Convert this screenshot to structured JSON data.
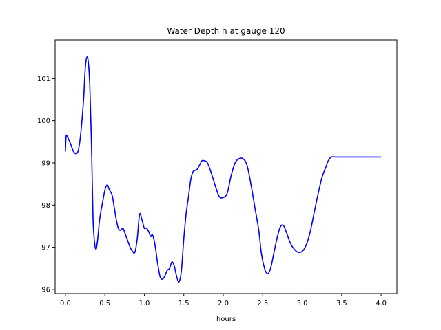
{
  "chart_data": {
    "type": "line",
    "title": "Water Depth h at gauge 120",
    "xlabel": "hours",
    "ylabel": "",
    "xlim": [
      -0.13,
      4.2
    ],
    "ylim": [
      95.9,
      101.92
    ],
    "x_ticks": [
      0.0,
      0.5,
      1.0,
      1.5,
      2.0,
      2.5,
      3.0,
      3.5,
      4.0
    ],
    "x_tick_labels": [
      "0.0",
      "0.5",
      "1.0",
      "1.5",
      "2.0",
      "2.5",
      "3.0",
      "3.5",
      "4.0"
    ],
    "y_ticks": [
      96,
      97,
      98,
      99,
      100,
      101
    ],
    "y_tick_labels": [
      "96",
      "97",
      "98",
      "99",
      "100",
      "101"
    ],
    "grid": false,
    "line_color": "#0000ff",
    "series": [
      {
        "x": [
          0.0,
          0.01,
          0.03,
          0.06,
          0.1,
          0.14,
          0.17,
          0.2,
          0.23,
          0.25,
          0.27,
          0.29,
          0.31,
          0.33,
          0.35,
          0.37,
          0.39,
          0.41,
          0.43,
          0.45,
          0.47,
          0.5,
          0.53,
          0.56,
          0.59,
          0.61,
          0.64,
          0.67,
          0.7,
          0.73,
          0.76,
          0.79,
          0.82,
          0.85,
          0.88,
          0.91,
          0.94,
          0.97,
          1.0,
          1.03,
          1.06,
          1.08,
          1.1,
          1.12,
          1.14,
          1.17,
          1.2,
          1.23,
          1.26,
          1.29,
          1.32,
          1.35,
          1.38,
          1.41,
          1.44,
          1.47,
          1.5,
          1.53,
          1.56,
          1.58,
          1.6,
          1.62,
          1.64,
          1.67,
          1.7,
          1.73,
          1.76,
          1.8,
          1.85,
          1.9,
          1.95,
          2.0,
          2.05,
          2.1,
          2.15,
          2.2,
          2.25,
          2.3,
          2.35,
          2.4,
          2.45,
          2.48,
          2.52,
          2.56,
          2.6,
          2.64,
          2.68,
          2.72,
          2.76,
          2.8,
          2.85,
          2.9,
          2.95,
          3.0,
          3.05,
          3.1,
          3.15,
          3.2,
          3.25,
          3.3,
          3.33,
          3.37,
          3.42,
          3.47,
          3.52,
          3.57,
          3.62,
          3.67,
          3.72,
          3.77,
          3.82,
          3.87,
          3.92,
          3.96,
          4.0
        ],
        "y": [
          99.27,
          99.64,
          99.6,
          99.48,
          99.28,
          99.22,
          99.35,
          99.8,
          100.5,
          101.2,
          101.5,
          101.4,
          100.8,
          99.5,
          97.7,
          97.1,
          96.96,
          97.2,
          97.6,
          97.85,
          98.05,
          98.35,
          98.48,
          98.35,
          98.25,
          98.05,
          97.7,
          97.45,
          97.4,
          97.45,
          97.3,
          97.15,
          97.0,
          96.9,
          96.88,
          97.2,
          97.78,
          97.65,
          97.45,
          97.45,
          97.35,
          97.25,
          97.3,
          97.2,
          97.0,
          96.6,
          96.3,
          96.24,
          96.32,
          96.45,
          96.5,
          96.65,
          96.55,
          96.3,
          96.18,
          96.45,
          97.2,
          97.8,
          98.2,
          98.5,
          98.7,
          98.8,
          98.82,
          98.85,
          98.95,
          99.05,
          99.05,
          99.0,
          98.75,
          98.45,
          98.2,
          98.18,
          98.28,
          98.7,
          99.0,
          99.1,
          99.1,
          98.95,
          98.5,
          97.95,
          97.4,
          96.9,
          96.52,
          96.37,
          96.5,
          96.85,
          97.2,
          97.47,
          97.52,
          97.35,
          97.1,
          96.95,
          96.88,
          96.9,
          97.05,
          97.35,
          97.8,
          98.25,
          98.65,
          98.9,
          99.05,
          99.14,
          99.14,
          99.14,
          99.14,
          99.14,
          99.14,
          99.14,
          99.14,
          99.14,
          99.14,
          99.14,
          99.14,
          99.14,
          99.14
        ]
      }
    ]
  }
}
